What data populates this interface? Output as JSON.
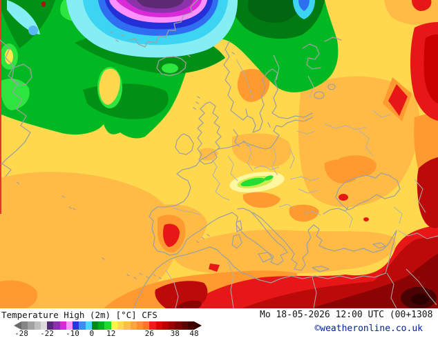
{
  "header": {
    "product_label": "Temperature High (2m) [°C] CFS",
    "datetime_label": "Mo 18-05-2026 12:00 UTC (00+1308",
    "copyright_label": "©weatheronline.co.uk"
  },
  "colorbar": {
    "unit": "°C",
    "ticks": [
      {
        "label": "-28",
        "pos": 0
      },
      {
        "label": "-22",
        "pos": 14.8
      },
      {
        "label": "-10",
        "pos": 29.6
      },
      {
        "label": "0",
        "pos": 40.7
      },
      {
        "label": "12",
        "pos": 51.9
      },
      {
        "label": "26",
        "pos": 74.1
      },
      {
        "label": "38",
        "pos": 88.9
      },
      {
        "label": "48",
        "pos": 100
      }
    ],
    "segments": [
      "#868686",
      "#a2a2a2",
      "#bfbfbf",
      "#dcdcdc",
      "#552a78",
      "#9030b0",
      "#d82ad8",
      "#ff94ff",
      "#2438dc",
      "#3c8cf8",
      "#4cd8fa",
      "#008a16",
      "#00ae20",
      "#1edc2e",
      "#fcf84a",
      "#ffd84e",
      "#ffbe4a",
      "#ffa43e",
      "#ff8c30",
      "#ff7424",
      "#f21b1b",
      "#dc0404",
      "#bc0000",
      "#9c0000",
      "#7c0000",
      "#5e0000",
      "#440000"
    ],
    "left_arrow_color": "#6a6a6a",
    "right_arrow_color": "#330000"
  },
  "map": {
    "palette": {
      "sea_yellow": "#ffd84e",
      "pale_yellow": "#ffe84e",
      "orange": "#ffbb45",
      "deep_orange": "#ff9a30",
      "red": "#e81717",
      "dark_red": "#bc0909",
      "maroon": "#8c0303",
      "dark_spot": "#4a0202",
      "darkest": "#2d0101",
      "green": "#00b822",
      "green_dark": "#009016",
      "green_darker": "#007a12",
      "green_deepest": "#006610",
      "green_bright": "#2ee43e",
      "cyan_light": "#84eef4",
      "cyan": "#3cd4f2",
      "blue": "#2f6ef0",
      "blue_dark": "#2330d8",
      "pink": "#ff90ff",
      "magenta": "#d82ad8",
      "purple": "#8c32aa",
      "purple_dark": "#5c2a72",
      "alps_pale": "#fff7a0",
      "alps_yellowgreen": "#cdeb4e",
      "alps_green": "#24dc34",
      "coastline": "#a0a0a0",
      "border": "#b0b0b0"
    }
  }
}
